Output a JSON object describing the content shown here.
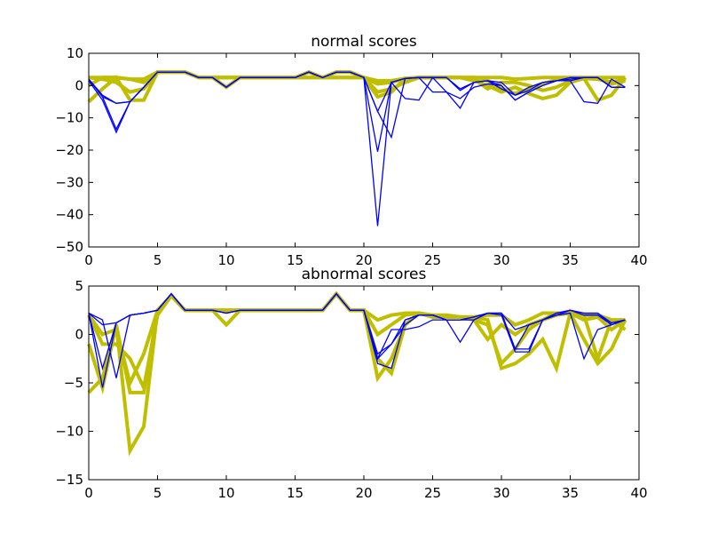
{
  "chart_data": [
    {
      "type": "line",
      "title": "normal scores",
      "xlabel": "",
      "ylabel": "",
      "xlim": [
        0,
        40
      ],
      "ylim": [
        -50,
        10
      ],
      "xticks": [
        0,
        5,
        10,
        15,
        20,
        25,
        30,
        35,
        40
      ],
      "yticks": [
        10,
        0,
        -10,
        -20,
        -30,
        -40,
        -50
      ],
      "grid": false,
      "x": [
        0,
        1,
        2,
        3,
        4,
        5,
        6,
        7,
        8,
        9,
        10,
        11,
        12,
        13,
        14,
        15,
        16,
        17,
        18,
        19,
        20,
        21,
        22,
        23,
        24,
        25,
        26,
        27,
        28,
        29,
        30,
        31,
        32,
        33,
        34,
        35,
        36,
        37,
        38,
        39
      ],
      "series_colors": {
        "yellow": "#bfbf00",
        "blue": "#0000ff"
      },
      "series": [
        {
          "color_key": "yellow",
          "values": [
            2.5,
            2.5,
            2.5,
            2,
            1,
            4.2,
            4.2,
            4.2,
            2.5,
            2.5,
            2.5,
            2.5,
            2.5,
            2.5,
            2.5,
            2.5,
            2.5,
            2.5,
            2.5,
            2.5,
            2.5,
            1.5,
            1.5,
            2.2,
            2.5,
            2.5,
            2.5,
            2.5,
            2.5,
            2.5,
            2.5,
            2,
            2.2,
            2.5,
            2.5,
            2.5,
            2.5,
            2.5,
            2.5,
            2.5
          ]
        },
        {
          "color_key": "yellow",
          "values": [
            0,
            2.5,
            2.5,
            2,
            2,
            4.2,
            4.2,
            4.2,
            2.5,
            2.5,
            2.5,
            2.5,
            2.5,
            2.5,
            2.5,
            2.5,
            2.5,
            2.5,
            2.5,
            2.5,
            2.5,
            0.5,
            1,
            2.2,
            2.5,
            2.5,
            2.5,
            2.5,
            2.5,
            1.5,
            -1,
            -2.5,
            -1,
            0.5,
            1.8,
            2.2,
            2.2,
            2.2,
            0.5,
            1.5
          ]
        },
        {
          "color_key": "yellow",
          "values": [
            -5,
            -1,
            2.5,
            -4.5,
            -4.5,
            4.2,
            4.2,
            4.2,
            2.5,
            2.5,
            -0.5,
            2.5,
            2.5,
            2.5,
            2.5,
            2.5,
            4.2,
            2.5,
            4.2,
            4.2,
            2.5,
            -3.5,
            -2,
            2.2,
            2.5,
            2.5,
            2.5,
            2.5,
            1.5,
            0,
            -2,
            -0.5,
            -2.5,
            -4,
            -3,
            1,
            2.2,
            -4.5,
            -3,
            2.5
          ]
        },
        {
          "color_key": "yellow",
          "values": [
            2.5,
            2,
            1,
            -2,
            -1,
            4.2,
            4.2,
            4.2,
            2.5,
            2.5,
            2.5,
            2.5,
            2.5,
            2.5,
            2.5,
            2.5,
            4.2,
            2.5,
            4.2,
            4.2,
            2.5,
            -2,
            -1,
            1,
            2.5,
            2.5,
            2.5,
            2.5,
            2,
            -1,
            1,
            1,
            0,
            -1.5,
            -0.5,
            1.5,
            2.2,
            2,
            1,
            2
          ]
        },
        {
          "color_key": "blue",
          "values": [
            1.5,
            -4.5,
            -14.5,
            -5,
            -0.5,
            4.2,
            4.2,
            4.2,
            2.5,
            2.5,
            -0.5,
            2.5,
            2.5,
            2.5,
            2.5,
            2.5,
            4.2,
            2.5,
            4.2,
            4.2,
            2.5,
            -43.5,
            1,
            -4,
            -4.5,
            2.5,
            -2,
            -7,
            1,
            1.5,
            -1,
            -3,
            -0.5,
            1,
            1.5,
            1.5,
            -5,
            -5.5,
            2,
            -0.5
          ]
        },
        {
          "color_key": "blue",
          "values": [
            2,
            -3.5,
            -13.5,
            -5,
            -0.5,
            4.2,
            4.2,
            4.2,
            2.5,
            2.5,
            -0.5,
            2.5,
            2.5,
            2.5,
            2.5,
            2.5,
            4.2,
            2.5,
            4.2,
            4.2,
            2.5,
            -20.5,
            1,
            2.2,
            2.5,
            -2,
            -2,
            -4,
            -0.5,
            0.5,
            0,
            -4.5,
            -2,
            0,
            1.5,
            1.5,
            2.5,
            2.5,
            -0.5,
            -0.5
          ]
        },
        {
          "color_key": "blue",
          "values": [
            2,
            -3,
            -5.5,
            -5,
            -0.5,
            4.2,
            4.2,
            4.2,
            2.5,
            2.5,
            -0.5,
            2.5,
            2.5,
            2.5,
            2.5,
            2.5,
            4.2,
            2.5,
            4.2,
            4.2,
            2.5,
            -8,
            -16,
            2.2,
            2.5,
            2.5,
            2.5,
            -1,
            1,
            1.5,
            1,
            -3,
            -1.5,
            1,
            1.5,
            2.5,
            2.5,
            2.5,
            -0.5,
            -0.5
          ]
        },
        {
          "color_key": "blue",
          "values": [
            2,
            -3.5,
            -5.5,
            -5,
            -0.5,
            4.2,
            4.2,
            4.2,
            2.5,
            2.5,
            -0.5,
            2.5,
            2.5,
            2.5,
            2.5,
            2.5,
            4.2,
            2.5,
            4.2,
            4.2,
            2.5,
            -8,
            1,
            2.2,
            2.5,
            2.5,
            2.5,
            -1.5,
            1,
            1.5,
            0,
            -4.5,
            -2,
            0,
            1.5,
            2,
            2.5,
            2.5,
            -0.5,
            -0.5
          ]
        }
      ]
    },
    {
      "type": "line",
      "title": "abnormal scores",
      "xlabel": "",
      "ylabel": "",
      "xlim": [
        0,
        40
      ],
      "ylim": [
        -15,
        5
      ],
      "xticks": [
        0,
        5,
        10,
        15,
        20,
        25,
        30,
        35,
        40
      ],
      "yticks": [
        5,
        0,
        -5,
        -10,
        -15
      ],
      "grid": false,
      "x": [
        0,
        1,
        2,
        3,
        4,
        5,
        6,
        7,
        8,
        9,
        10,
        11,
        12,
        13,
        14,
        15,
        16,
        17,
        18,
        19,
        20,
        21,
        22,
        23,
        24,
        25,
        26,
        27,
        28,
        29,
        30,
        31,
        32,
        33,
        34,
        35,
        36,
        37,
        38,
        39
      ],
      "series_colors": {
        "yellow": "#bfbf00",
        "blue": "#0000ff"
      },
      "series": [
        {
          "color_key": "yellow",
          "values": [
            -6,
            -4.5,
            1,
            -12,
            -9.5,
            2.5,
            4,
            2.5,
            2.5,
            2.5,
            1,
            2.5,
            2.5,
            2.5,
            2.5,
            2.5,
            2.5,
            2.5,
            4.2,
            2.5,
            2.5,
            -4.5,
            -2.5,
            1,
            2.2,
            1.8,
            1.8,
            1.8,
            1.8,
            1.5,
            -3.5,
            -3,
            -2,
            -0.5,
            -3.5,
            2.2,
            -0.5,
            -3,
            -1.5,
            1.5
          ]
        },
        {
          "color_key": "yellow",
          "values": [
            -1,
            -5.5,
            1,
            -6,
            -6,
            2.5,
            4,
            2.5,
            2.5,
            2.5,
            2.5,
            2.5,
            2.5,
            2.5,
            2.5,
            2.5,
            2.5,
            2.5,
            4.2,
            2.5,
            2.5,
            -2.5,
            -4,
            1,
            2.2,
            1.8,
            1.8,
            1.8,
            1.5,
            1,
            -3,
            -1.5,
            0.5,
            1.5,
            2.2,
            2.2,
            2,
            -2.5,
            1.5,
            1.5
          ]
        },
        {
          "color_key": "yellow",
          "values": [
            2,
            -1,
            -1,
            -2.5,
            -5.5,
            2,
            4,
            2.5,
            2.5,
            2.5,
            2.5,
            2.5,
            2.5,
            2.5,
            2.5,
            2.5,
            2.5,
            2.5,
            4.2,
            2.5,
            2.5,
            1.5,
            2,
            2.2,
            2.2,
            2,
            2,
            1.8,
            1.8,
            2,
            2,
            1,
            1.5,
            2.2,
            2.2,
            2.2,
            2,
            2,
            1.5,
            0.5
          ]
        },
        {
          "color_key": "yellow",
          "values": [
            2,
            0,
            0.5,
            -5,
            -2,
            2.5,
            4,
            2.5,
            2.5,
            2.5,
            2.5,
            2.5,
            2.5,
            2.5,
            2.5,
            2.5,
            2.5,
            2.5,
            4.2,
            2.5,
            2.5,
            0,
            1,
            2,
            2.2,
            1.8,
            1.8,
            1.8,
            1.5,
            -0.5,
            1,
            0,
            1,
            1.5,
            2,
            2.2,
            1.5,
            1.8,
            0.5,
            1.5
          ]
        },
        {
          "color_key": "blue",
          "values": [
            2.2,
            -3.5,
            1.2,
            2,
            2.2,
            2.5,
            4.2,
            2.5,
            2.5,
            2.5,
            2.2,
            2.5,
            2.5,
            2.5,
            2.5,
            2.5,
            2.5,
            2.5,
            4.2,
            2.5,
            2.5,
            -2.5,
            0.5,
            0.5,
            0.8,
            1.5,
            1.5,
            -0.8,
            1.5,
            2.2,
            2,
            -1.8,
            -1.8,
            1.5,
            2,
            2.2,
            -2.5,
            0.5,
            1,
            1.5
          ]
        },
        {
          "color_key": "blue",
          "values": [
            2.2,
            -5.5,
            1.2,
            2,
            2.2,
            2.5,
            4.2,
            2.5,
            2.5,
            2.5,
            2.2,
            2.5,
            2.5,
            2.5,
            2.5,
            2.5,
            2.5,
            2.5,
            4.2,
            2.5,
            2.5,
            -2,
            -1,
            1,
            2,
            2,
            1.5,
            1.5,
            1.5,
            2.2,
            2.2,
            -1.5,
            -1.5,
            1.5,
            2,
            2.5,
            2,
            2,
            1,
            1.5
          ]
        },
        {
          "color_key": "blue",
          "values": [
            2.2,
            1,
            1.2,
            2,
            2.2,
            2.5,
            4.2,
            2.5,
            2.5,
            2.5,
            2.2,
            2.5,
            2.5,
            2.5,
            2.5,
            2.5,
            2.5,
            2.5,
            4.2,
            2.5,
            2.5,
            -3,
            -3.5,
            1.5,
            2,
            2,
            1.5,
            1.5,
            1.8,
            2.2,
            2.2,
            0.5,
            1,
            1.5,
            2.2,
            2.5,
            2.2,
            2.2,
            1,
            1.5
          ]
        },
        {
          "color_key": "blue",
          "values": [
            2.2,
            1.5,
            -4.5,
            2,
            2.2,
            2.5,
            4.2,
            2.5,
            2.5,
            2.5,
            2.2,
            2.5,
            2.5,
            2.5,
            2.5,
            2.5,
            2.5,
            2.5,
            4.2,
            2.5,
            2.5,
            -2.5,
            -1,
            1.5,
            2,
            2,
            1.5,
            1.5,
            1.8,
            2.2,
            2.2,
            -1.5,
            1,
            1.5,
            2.2,
            2.5,
            2.2,
            2.2,
            1.2,
            1.5
          ]
        }
      ]
    }
  ]
}
